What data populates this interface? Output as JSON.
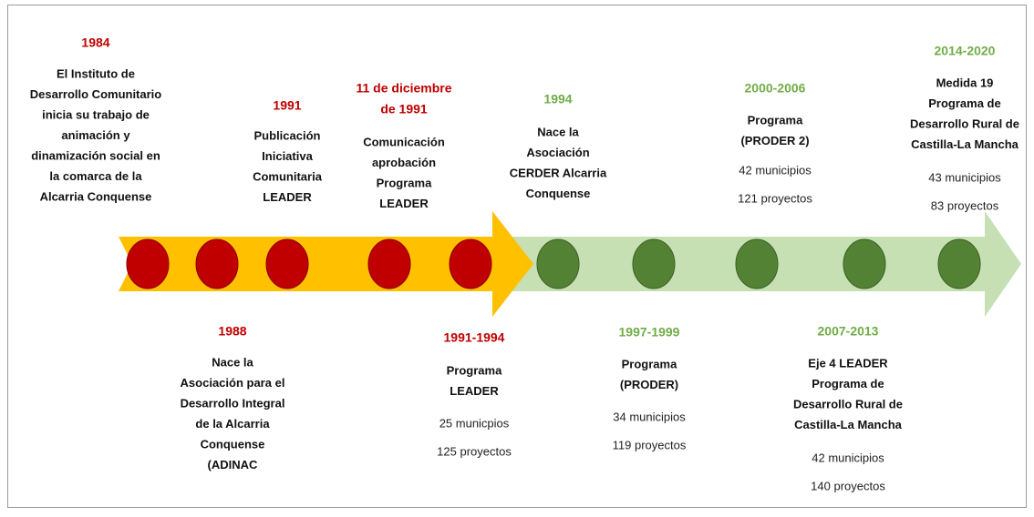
{
  "events": [
    {
      "year": [
        "1984"
      ],
      "text": [
        "El Instituto de",
        "Desarrollo Comunitario",
        "inicia su trabajo de",
        "animación y",
        "dinamización social en",
        "la comarca de la",
        "Alcarria Conquense"
      ],
      "stats": []
    },
    {
      "year": [
        "1988"
      ],
      "text": [
        "Nace la",
        "Asociación para el",
        "Desarrollo Integral",
        "de la Alcarria",
        "Conquense",
        "(ADINAC"
      ],
      "stats": []
    },
    {
      "year": [
        "1991"
      ],
      "text": [
        "Publicación",
        "Iniciativa",
        "Comunitaria",
        "LEADER"
      ],
      "stats": []
    },
    {
      "year": [
        "11 de diciembre",
        "de 1991"
      ],
      "text": [
        "Comunicación",
        "aprobación",
        "Programa",
        "LEADER"
      ],
      "stats": []
    },
    {
      "year": [
        "1991-1994"
      ],
      "text": [
        "Programa",
        "LEADER"
      ],
      "stats": [
        "25 municpios",
        "125 proyectos"
      ]
    },
    {
      "year": [
        "1994"
      ],
      "text": [
        "Nace la",
        "Asociación",
        "CERDER Alcarria",
        "Conquense"
      ],
      "stats": []
    },
    {
      "year": [
        "1997-1999"
      ],
      "text": [
        "Programa",
        "(PRODER)"
      ],
      "stats": [
        "34 municipios",
        "119 proyectos"
      ]
    },
    {
      "year": [
        "2000-2006"
      ],
      "text": [
        "Programa",
        "(PRODER 2)"
      ],
      "stats": [
        "42 municipios",
        "121 proyectos"
      ]
    },
    {
      "year": [
        "2007-2013"
      ],
      "text": [
        "Eje 4 LEADER",
        "Programa de",
        "Desarrollo Rural de",
        "Castilla-La Mancha"
      ],
      "stats": [
        "42 municipios",
        "140 proyectos"
      ]
    },
    {
      "year": [
        "2014-2020"
      ],
      "text": [
        "Medida 19",
        "Programa de",
        "Desarrollo Rural de",
        "Castilla-La Mancha"
      ],
      "stats": [
        "43 municipios",
        "83 proyectos"
      ]
    }
  ]
}
